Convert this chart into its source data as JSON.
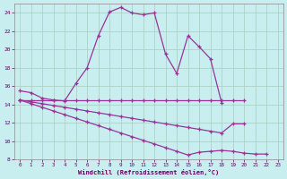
{
  "xlabel": "Windchill (Refroidissement éolien,°C)",
  "background_color": "#c8eef0",
  "line_color": "#993399",
  "x_values": [
    0,
    1,
    2,
    3,
    4,
    5,
    6,
    7,
    8,
    9,
    10,
    11,
    12,
    13,
    14,
    15,
    16,
    17,
    18,
    19,
    20,
    21,
    22,
    23
  ],
  "series1": [
    15.5,
    15.3,
    14.7,
    14.5,
    14.4,
    16.3,
    18.0,
    21.5,
    24.1,
    24.6,
    24.0,
    23.8,
    24.0,
    19.5,
    17.4,
    21.5,
    20.3,
    19.0,
    14.2,
    null,
    null,
    null,
    null,
    null
  ],
  "series2": [
    14.5,
    14.5,
    14.5,
    14.5,
    14.5,
    14.5,
    14.5,
    14.5,
    14.5,
    14.5,
    14.5,
    14.5,
    14.5,
    14.5,
    14.5,
    14.5,
    14.5,
    14.5,
    14.5,
    14.5,
    14.5,
    null,
    null,
    null
  ],
  "series3": [
    14.5,
    14.3,
    14.1,
    13.9,
    13.7,
    13.5,
    13.3,
    13.1,
    12.9,
    12.7,
    12.5,
    12.3,
    12.1,
    11.9,
    11.7,
    11.5,
    11.3,
    11.1,
    10.9,
    11.9,
    11.9,
    null,
    null,
    null
  ],
  "series4": [
    14.5,
    14.1,
    13.7,
    13.3,
    12.9,
    12.5,
    12.1,
    11.7,
    11.3,
    10.9,
    10.5,
    10.1,
    9.7,
    9.3,
    8.9,
    8.5,
    8.8,
    8.9,
    9.0,
    8.9,
    8.7,
    8.6,
    8.6,
    null
  ],
  "ylim": [
    8,
    25
  ],
  "xlim": [
    -0.5,
    23.5
  ],
  "yticks": [
    8,
    10,
    12,
    14,
    16,
    18,
    20,
    22,
    24
  ],
  "xticks": [
    0,
    1,
    2,
    3,
    4,
    5,
    6,
    7,
    8,
    9,
    10,
    11,
    12,
    13,
    14,
    15,
    16,
    17,
    18,
    19,
    20,
    21,
    22,
    23
  ]
}
